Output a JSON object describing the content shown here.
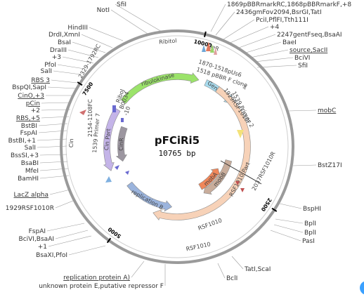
{
  "plasmid": {
    "name": "pFCiRi5",
    "length": "10765 bp"
  },
  "ticks": [
    {
      "label": "10000",
      "angle": 14
    },
    {
      "label": "7500",
      "angle": 303
    },
    {
      "label": "5000",
      "angle": 216
    },
    {
      "label": "2500",
      "angle": 123
    }
  ],
  "outer_arcs": [
    {
      "label": "Ribitol",
      "mid": 355
    },
    {
      "label": "GeR",
      "mid": 20
    },
    {
      "label": "Cin",
      "mid": 272
    },
    {
      "label": "RSF1010",
      "mid": 168
    }
  ],
  "features": [
    {
      "label": "ribulokinase",
      "start": 310,
      "end": 18,
      "r": 100,
      "color": "#9be36a",
      "dir": 1
    },
    {
      "label": "GentR Part",
      "start": 24,
      "end": 52,
      "r": 100,
      "color": "#a8dcef",
      "dir": 1
    },
    {
      "label": "RSF1010 Part",
      "start": 35,
      "end": 200,
      "r": 100,
      "color": "#f7d2b8",
      "dir": 1
    },
    {
      "label": "Cin Part",
      "start": 250,
      "end": 302,
      "r": 100,
      "color": "#c4b4e8",
      "dir": -1
    },
    {
      "label": "replication B.",
      "start": 185,
      "end": 232,
      "r": 86,
      "color": "#9bb4dd",
      "dir": -1
    },
    {
      "label": "mobB",
      "start": 105,
      "end": 150,
      "r": 76,
      "color": "#c9ad9b",
      "dir": 1
    },
    {
      "label": "mobA",
      "start": 118,
      "end": 150,
      "r": 66,
      "color": "#f0875a",
      "dir": -1
    },
    {
      "label": "CinR",
      "start": 255,
      "end": 290,
      "r": 80,
      "color": "#9c96a0",
      "dir": -1
    }
  ],
  "inner_labels": [
    "1870-1518pUs6",
    "1518 pBBR F clone",
    "1929RSF1010F",
    "1539 Primer 2",
    "2329-1792RC",
    "2154-1108FC",
    "1539 Primer 7",
    "2037RSF1010R",
    "RiboJ",
    "B0034",
    "-10",
    "RSF1010"
  ],
  "sites_left": [
    "NotI",
    "HindIII",
    "DrdI,XmnI",
    "BsaI",
    "DraIII",
    "+3",
    "PfoI",
    "SalI",
    "RBS 3",
    "BspQI,SapI",
    "CinO,+3",
    "pCin",
    "+2",
    "RBS,+5",
    "BstBI",
    "FspAI",
    "BstBI,+1",
    "SalI",
    "BssSI,+3",
    "BsaBI",
    "MfeI",
    "BamHI",
    "LacZ alpha",
    "1929RSF1010R",
    "FspAI",
    "BciVI,BsaAI",
    "+1",
    "BsaXI,PfoI",
    "replication protein A)",
    "unknown protein E,putative repressor F"
  ],
  "sites_right": [
    "SfiI",
    "1869pBBRmarkRC,1868pBBRmarkF,+8",
    "2436gmFov2094,BsrGI,TatI",
    "PciI,PflFI,Tth111I",
    "+4",
    "2247gentFseq,BsaAI",
    "BaeI",
    "source,SacII",
    "BciVI",
    "SfiI",
    "mobC",
    "BstZ17I",
    "BspHI",
    "BplI",
    "BplI",
    "PasI",
    "TatI,ScaI",
    "BclI"
  ]
}
